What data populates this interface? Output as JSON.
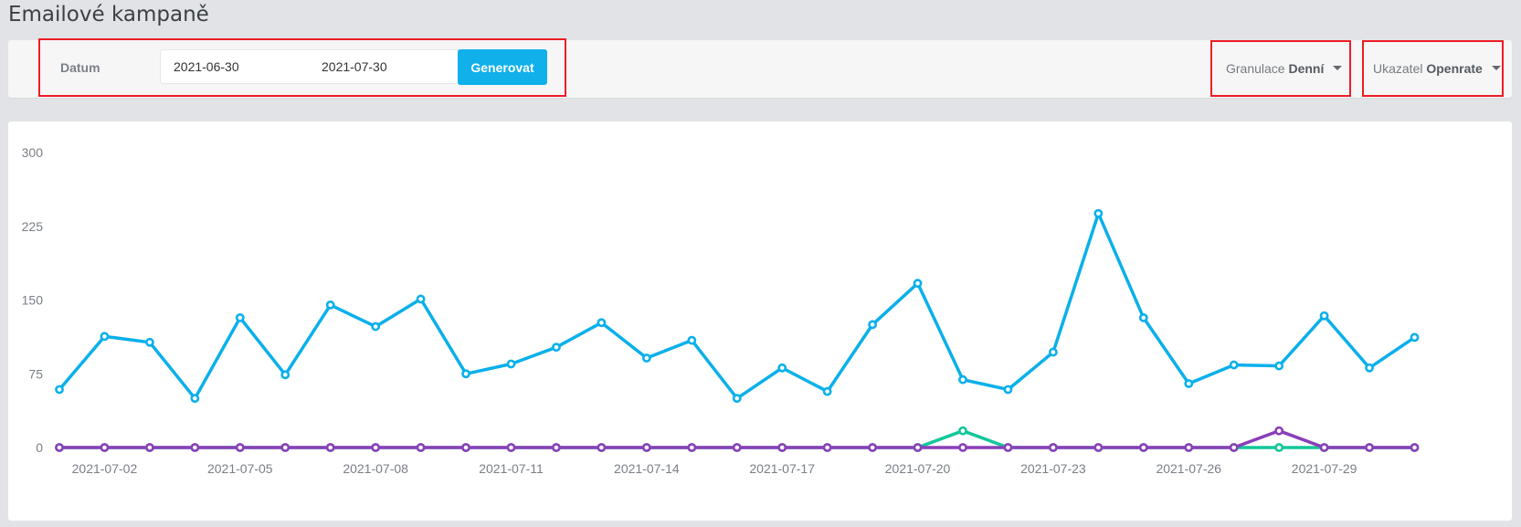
{
  "page": {
    "title": "Emailové kampaně"
  },
  "filters": {
    "date_label": "Datum",
    "date_from": "2021-06-30",
    "date_to": "2021-07-30",
    "generate_label": "Generovat",
    "granulace_label": "Granulace",
    "granulace_value": "Denní",
    "ukazatel_label": "Ukazatel",
    "ukazatel_value": "Openrate"
  },
  "colors": {
    "accent": "#10b0ea",
    "highlight_border": "#ee1c25",
    "series_blue": "#0ab0ea",
    "series_green": "#13c79a",
    "series_purple": "#8a3eb8"
  },
  "chart_data": {
    "type": "line",
    "y_ticks": [
      "0",
      "75",
      "150",
      "225",
      "300"
    ],
    "ylim": [
      0,
      300
    ],
    "x": [
      "2021-07-01",
      "2021-07-02",
      "2021-07-03",
      "2021-07-04",
      "2021-07-05",
      "2021-07-06",
      "2021-07-07",
      "2021-07-08",
      "2021-07-09",
      "2021-07-10",
      "2021-07-11",
      "2021-07-12",
      "2021-07-13",
      "2021-07-14",
      "2021-07-15",
      "2021-07-16",
      "2021-07-17",
      "2021-07-18",
      "2021-07-19",
      "2021-07-20",
      "2021-07-21",
      "2021-07-22",
      "2021-07-23",
      "2021-07-24",
      "2021-07-25",
      "2021-07-26",
      "2021-07-27",
      "2021-07-28",
      "2021-07-29",
      "2021-07-30",
      "2021-07-31"
    ],
    "x_tick_labels": [
      "2021-07-02",
      "2021-07-05",
      "2021-07-08",
      "2021-07-11",
      "2021-07-14",
      "2021-07-17",
      "2021-07-20",
      "2021-07-23",
      "2021-07-26",
      "2021-07-29"
    ],
    "series": [
      {
        "color": "#0ab0ea",
        "values": [
          59,
          113,
          107,
          50,
          132,
          74,
          145,
          123,
          151,
          75,
          85,
          102,
          127,
          91,
          109,
          50,
          81,
          57,
          125,
          167,
          69,
          59,
          97,
          238,
          132,
          65,
          84,
          83,
          134,
          81,
          112
        ]
      },
      {
        "color": "#13c79a",
        "values": [
          0,
          0,
          0,
          0,
          0,
          0,
          0,
          0,
          0,
          0,
          0,
          0,
          0,
          0,
          0,
          0,
          0,
          0,
          0,
          0,
          17,
          0,
          0,
          0,
          0,
          0,
          0,
          0,
          0,
          0,
          0
        ]
      },
      {
        "color": "#8a3eb8",
        "values": [
          0,
          0,
          0,
          0,
          0,
          0,
          0,
          0,
          0,
          0,
          0,
          0,
          0,
          0,
          0,
          0,
          0,
          0,
          0,
          0,
          0,
          0,
          0,
          0,
          0,
          0,
          0,
          17,
          0,
          0,
          0
        ]
      }
    ]
  }
}
